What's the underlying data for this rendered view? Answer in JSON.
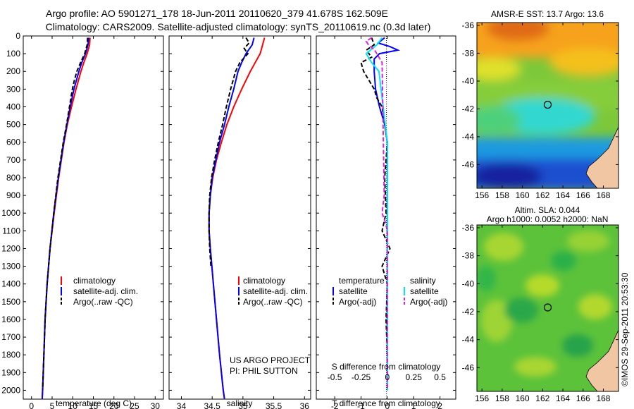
{
  "header": {
    "line1": "Argo profile: AO 5901271_178 18-Jun-2011 20110620_379 41.678S 162.509E",
    "line2": "Climatology: CARS2009. Satellite-adjusted climatology: synTS_20110619.nc (0.3d later)"
  },
  "colors": {
    "climatology": "#ff0000",
    "satellite": "#0000ff",
    "argo": "#000000",
    "satellite_salinity": "#00e5ff",
    "argo_salinity": "#e020e0"
  },
  "chart_data": [
    {
      "type": "line",
      "xlabel": "temperature (deg C)",
      "ylabel": "",
      "xlim": [
        -2,
        32
      ],
      "ylim": [
        2050,
        0
      ],
      "xticks": [
        0,
        5,
        10,
        15,
        20,
        25,
        30
      ],
      "yticks": [
        0,
        100,
        200,
        300,
        400,
        500,
        600,
        700,
        800,
        900,
        1000,
        1100,
        1200,
        1300,
        1400,
        1500,
        1600,
        1700,
        1800,
        1900,
        2000
      ],
      "legend": [
        "climatology",
        "satellite-adj. clim.",
        "Argo(..raw -QC)"
      ],
      "legend_position": "lower-center",
      "series": [
        {
          "name": "climatology",
          "depth": [
            10,
            50,
            100,
            150,
            200,
            300,
            400,
            500,
            600,
            800,
            1000,
            1200,
            1400,
            1600,
            1800,
            2000,
            2050
          ],
          "values": [
            14.2,
            14.1,
            13.5,
            12.7,
            12.0,
            10.8,
            9.7,
            8.7,
            7.9,
            6.6,
            5.5,
            4.5,
            3.8,
            3.3,
            3.0,
            2.7,
            2.6
          ]
        },
        {
          "name": "satellite-adj. clim.",
          "depth": [
            10,
            50,
            100,
            150,
            200,
            300,
            400,
            500,
            600,
            800,
            1000,
            1200,
            1400,
            1600,
            1800,
            2000,
            2050
          ],
          "values": [
            13.9,
            13.7,
            13.1,
            12.2,
            11.5,
            10.3,
            9.4,
            8.6,
            7.8,
            6.5,
            5.4,
            4.5,
            3.8,
            3.3,
            3.0,
            2.7,
            2.6
          ]
        },
        {
          "name": "Argo(..raw -QC)",
          "depth": [
            10,
            50,
            100,
            150,
            200,
            250,
            300,
            400,
            500,
            600,
            800,
            1000,
            1200,
            1400,
            1600,
            1800,
            2000
          ],
          "values": [
            13.6,
            13.5,
            12.9,
            11.9,
            11.0,
            10.4,
            9.9,
            9.2,
            8.5,
            7.7,
            6.4,
            5.4,
            4.5,
            3.8,
            3.3,
            3.0,
            2.7
          ]
        }
      ]
    },
    {
      "type": "line",
      "xlabel": "salinity",
      "xlim": [
        33.8,
        36.1
      ],
      "ylim": [
        2050,
        0
      ],
      "xticks": [
        34,
        34.5,
        35,
        35.5,
        36
      ],
      "legend": [
        "climatology",
        "satellite-adj. clim.",
        "Argo(..raw -QC)"
      ],
      "legend_position": "lower-center",
      "annotations": [
        "US ARGO PROJECT",
        "PI: PHIL SUTTON"
      ],
      "series": [
        {
          "name": "climatology",
          "depth": [
            10,
            50,
            100,
            150,
            200,
            300,
            400,
            500,
            600,
            700,
            800,
            900,
            1000,
            1100,
            1200,
            1400,
            1600,
            1800,
            2000,
            2050
          ],
          "values": [
            35.35,
            35.32,
            35.28,
            35.2,
            35.12,
            34.98,
            34.85,
            34.74,
            34.65,
            34.57,
            34.51,
            34.47,
            34.45,
            34.45,
            34.47,
            34.52,
            34.57,
            34.62,
            34.68,
            34.7
          ]
        },
        {
          "name": "satellite-adj. clim.",
          "depth": [
            10,
            50,
            100,
            150,
            200,
            300,
            400,
            500,
            600,
            700,
            800,
            900,
            1000,
            1100,
            1200,
            1400,
            1600,
            1800,
            2000,
            2050
          ],
          "values": [
            35.18,
            35.15,
            35.05,
            34.98,
            34.92,
            34.85,
            34.77,
            34.7,
            34.62,
            34.56,
            34.5,
            34.47,
            34.45,
            34.45,
            34.47,
            34.52,
            34.57,
            34.62,
            34.68,
            34.7
          ]
        },
        {
          "name": "Argo(..raw -QC)",
          "depth": [
            10,
            40,
            70,
            100,
            150,
            200,
            300,
            400,
            500,
            600,
            700,
            800,
            900,
            1000,
            1100,
            1200,
            1300
          ],
          "values": [
            35.05,
            35.1,
            35.02,
            35.08,
            34.95,
            34.88,
            34.8,
            34.73,
            34.67,
            34.6,
            34.54,
            34.49,
            34.46,
            34.45,
            34.45,
            34.46,
            34.48
          ]
        }
      ]
    },
    {
      "type": "line",
      "xlabel": "T difference from climatology",
      "xlabel_top": "S difference from climatology",
      "xlim": [
        -2.7,
        2.6
      ],
      "ylim": [
        2050,
        0
      ],
      "xticks": [
        -2,
        -1,
        0,
        1,
        2
      ],
      "xticks_top": [
        -0.5,
        -0.25,
        0,
        0.25,
        0.5
      ],
      "legend_groups": [
        {
          "title": "temperature",
          "items": [
            "satellite",
            "Argo(-adj)"
          ]
        },
        {
          "title": "salinity",
          "items": [
            "satellite",
            "Argo(-adj)"
          ]
        }
      ],
      "series": [
        {
          "name": "satellite",
          "group": "temperature",
          "depth": [
            10,
            40,
            60,
            80,
            100,
            130,
            160,
            200,
            300,
            400,
            500,
            600,
            800,
            1000,
            1200,
            1400,
            1600,
            1800,
            2000
          ],
          "values": [
            -0.1,
            -0.35,
            0.1,
            0.4,
            -0.3,
            -0.5,
            -0.5,
            -0.5,
            -0.45,
            -0.3,
            -0.1,
            0,
            0,
            0,
            0,
            0,
            0,
            0,
            0
          ]
        },
        {
          "name": "Argo(-adj)",
          "group": "temperature",
          "depth": [
            10,
            50,
            80,
            120,
            150,
            200,
            250,
            300,
            350,
            400,
            500,
            600,
            800,
            1000,
            1100,
            1200,
            1300,
            1400,
            1600,
            1800,
            2000
          ],
          "values": [
            -0.6,
            -0.5,
            -0.8,
            -0.6,
            -1.0,
            -0.9,
            -0.7,
            -0.5,
            -0.4,
            -0.2,
            -0.1,
            0,
            -0.1,
            -0.05,
            -0.2,
            0.1,
            -0.2,
            0,
            -0.05,
            0,
            0
          ]
        },
        {
          "name": "satellite",
          "group": "salinity",
          "depth": [
            10,
            50,
            100,
            150,
            200,
            300,
            400,
            500,
            600,
            800,
            1000,
            1200,
            1400,
            1600,
            1800,
            2000
          ],
          "values": [
            -0.05,
            -0.1,
            -0.2,
            -0.15,
            -0.08,
            -0.06,
            -0.04,
            -0.02,
            0,
            0,
            0,
            0,
            0,
            0,
            0,
            0
          ]
        },
        {
          "name": "Argo(-adj)",
          "group": "salinity",
          "depth": [
            10,
            30,
            50,
            80,
            100,
            150,
            900,
            950,
            1000,
            1050,
            1100,
            1200,
            1300,
            1400,
            1600,
            1800,
            2000
          ],
          "values": [
            -0.15,
            -0.2,
            -0.18,
            -0.12,
            -0.1,
            -0.05,
            -0.03,
            -0.04,
            -0.05,
            -0.02,
            0,
            0,
            0,
            0,
            0,
            0,
            0
          ]
        }
      ]
    },
    {
      "type": "heatmap",
      "title": "AMSR-E SST: 13.7 Argo: 13.6",
      "xlim": [
        155.5,
        169.5
      ],
      "ylim": [
        -47.7,
        -35.8
      ],
      "xticks": [
        156,
        158,
        160,
        162,
        164,
        166,
        168
      ],
      "yticks": [
        -36,
        -38,
        -40,
        -42,
        -44,
        -46
      ],
      "marker": {
        "lon": 162.5,
        "lat": -41.7
      }
    },
    {
      "type": "heatmap",
      "title": "Altim. SLA: 0.044",
      "subtitle": "Argo h1000: 0.0052 h2000: NaN",
      "xlim": [
        155.5,
        169.5
      ],
      "ylim": [
        -47.7,
        -35.8
      ],
      "xticks": [
        156,
        158,
        160,
        162,
        164,
        166,
        168
      ],
      "yticks": [
        -36,
        -38,
        -40,
        -42,
        -44,
        -46
      ],
      "marker": {
        "lon": 162.5,
        "lat": -41.7
      }
    }
  ],
  "footer": {
    "stamp": "©IMOS 29-Sep-2011 20:53:30"
  }
}
